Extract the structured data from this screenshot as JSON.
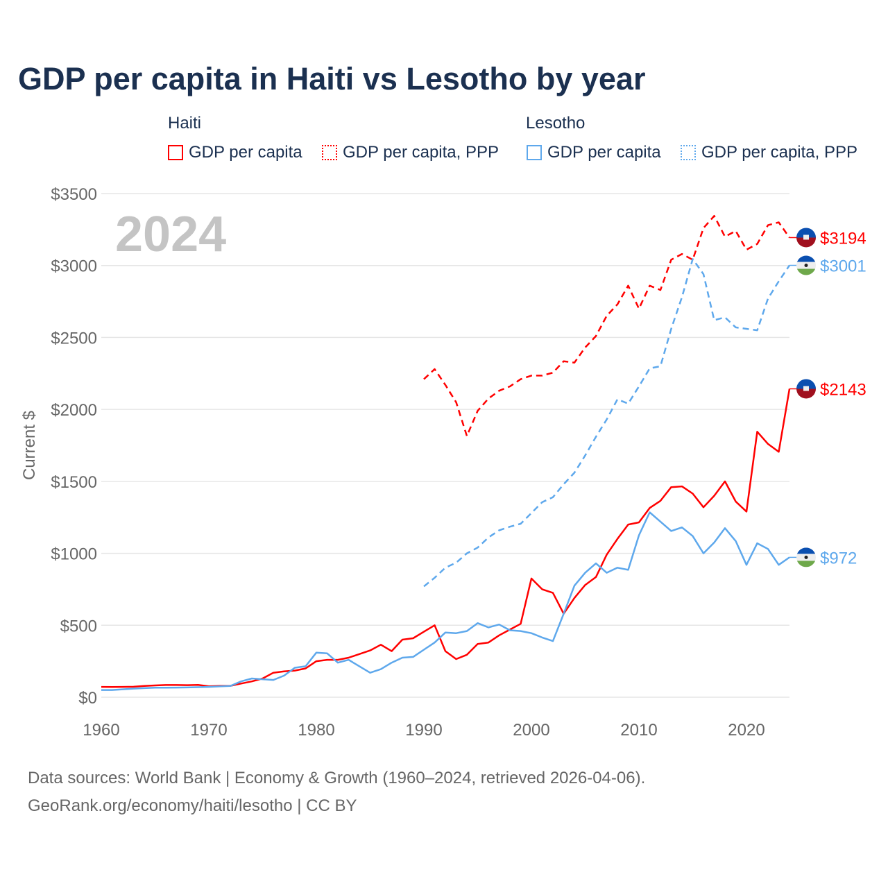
{
  "chart_data": {
    "type": "line",
    "title": "GDP per capita in Haiti vs Lesotho by year",
    "ylabel": "Current $",
    "xlabel": "",
    "year_watermark": "2024",
    "xlim": [
      1960,
      2024
    ],
    "ylim": [
      0,
      3500
    ],
    "x_ticks": [
      1960,
      1970,
      1980,
      1990,
      2000,
      2010,
      2020
    ],
    "x_tick_labels": [
      "1960",
      "1970",
      "1980",
      "1990",
      "2000",
      "2010",
      "2020"
    ],
    "y_ticks": [
      0,
      500,
      1000,
      1500,
      2000,
      2500,
      3000,
      3500
    ],
    "y_tick_labels": [
      "$0",
      "$500",
      "$1000",
      "$1500",
      "$2000",
      "$2500",
      "$3000",
      "$3500"
    ],
    "grid": true,
    "legend": {
      "placement": "top",
      "groups": [
        {
          "name": "Haiti",
          "items": [
            "GDP per capita",
            "GDP per capita, PPP"
          ]
        },
        {
          "name": "Lesotho",
          "items": [
            "GDP per capita",
            "GDP per capita, PPP"
          ]
        }
      ]
    },
    "series": [
      {
        "name": "Haiti GDP per capita",
        "country": "Haiti",
        "color": "#ff0000",
        "dashed": false,
        "start": 1960,
        "values": [
          72,
          71,
          72,
          73,
          78,
          82,
          85,
          85,
          84,
          86,
          76,
          79,
          79,
          95,
          110,
          130,
          170,
          180,
          185,
          200,
          250,
          260,
          260,
          275,
          300,
          325,
          365,
          320,
          400,
          410,
          455,
          500,
          320,
          265,
          295,
          370,
          380,
          430,
          470,
          510,
          825,
          750,
          725,
          580,
          690,
          780,
          835,
          990,
          1100,
          1200,
          1215,
          1315,
          1365,
          1460,
          1465,
          1415,
          1320,
          1400,
          1500,
          1360,
          1290,
          1845,
          1760,
          1705,
          2143
        ],
        "end_label": "$2143"
      },
      {
        "name": "Haiti GDP per capita, PPP",
        "country": "Haiti",
        "color": "#ff0000",
        "dashed": true,
        "start": 1990,
        "values": [
          2210,
          2280,
          2170,
          2050,
          1815,
          1990,
          2075,
          2130,
          2160,
          2210,
          2235,
          2235,
          2255,
          2335,
          2325,
          2430,
          2510,
          2650,
          2730,
          2860,
          2700,
          2860,
          2830,
          3040,
          3080,
          3040,
          3260,
          3345,
          3200,
          3240,
          3110,
          3150,
          3280,
          3300,
          3194
        ],
        "end_label": "$3194"
      },
      {
        "name": "Lesotho GDP per capita",
        "country": "Lesotho",
        "color": "#5ea8ec",
        "dashed": false,
        "start": 1960,
        "values": [
          50,
          50,
          55,
          60,
          63,
          66,
          66,
          67,
          68,
          70,
          72,
          75,
          78,
          110,
          130,
          125,
          120,
          150,
          205,
          215,
          310,
          305,
          240,
          260,
          215,
          170,
          195,
          240,
          275,
          280,
          330,
          380,
          450,
          445,
          460,
          515,
          485,
          505,
          465,
          460,
          445,
          415,
          390,
          580,
          775,
          865,
          930,
          865,
          900,
          885,
          1125,
          1285,
          1220,
          1155,
          1180,
          1120,
          1000,
          1075,
          1175,
          1085,
          920,
          1070,
          1030,
          920,
          972
        ],
        "end_label": "$972"
      },
      {
        "name": "Lesotho GDP per capita, PPP",
        "country": "Lesotho",
        "color": "#5ea8ec",
        "dashed": true,
        "start": 1990,
        "values": [
          770,
          830,
          900,
          935,
          1000,
          1040,
          1110,
          1160,
          1185,
          1205,
          1280,
          1355,
          1390,
          1480,
          1560,
          1680,
          1810,
          1930,
          2070,
          2040,
          2160,
          2285,
          2300,
          2560,
          2780,
          3045,
          2940,
          2620,
          2640,
          2570,
          2560,
          2550,
          2770,
          2890,
          3001
        ],
        "end_label": "$3001"
      }
    ]
  },
  "footer": {
    "line1": "Data sources: World Bank | Economy & Growth (1960–2024, retrieved 2026-04-06).",
    "line2": "GeoRank.org/economy/haiti/lesotho | CC BY"
  }
}
